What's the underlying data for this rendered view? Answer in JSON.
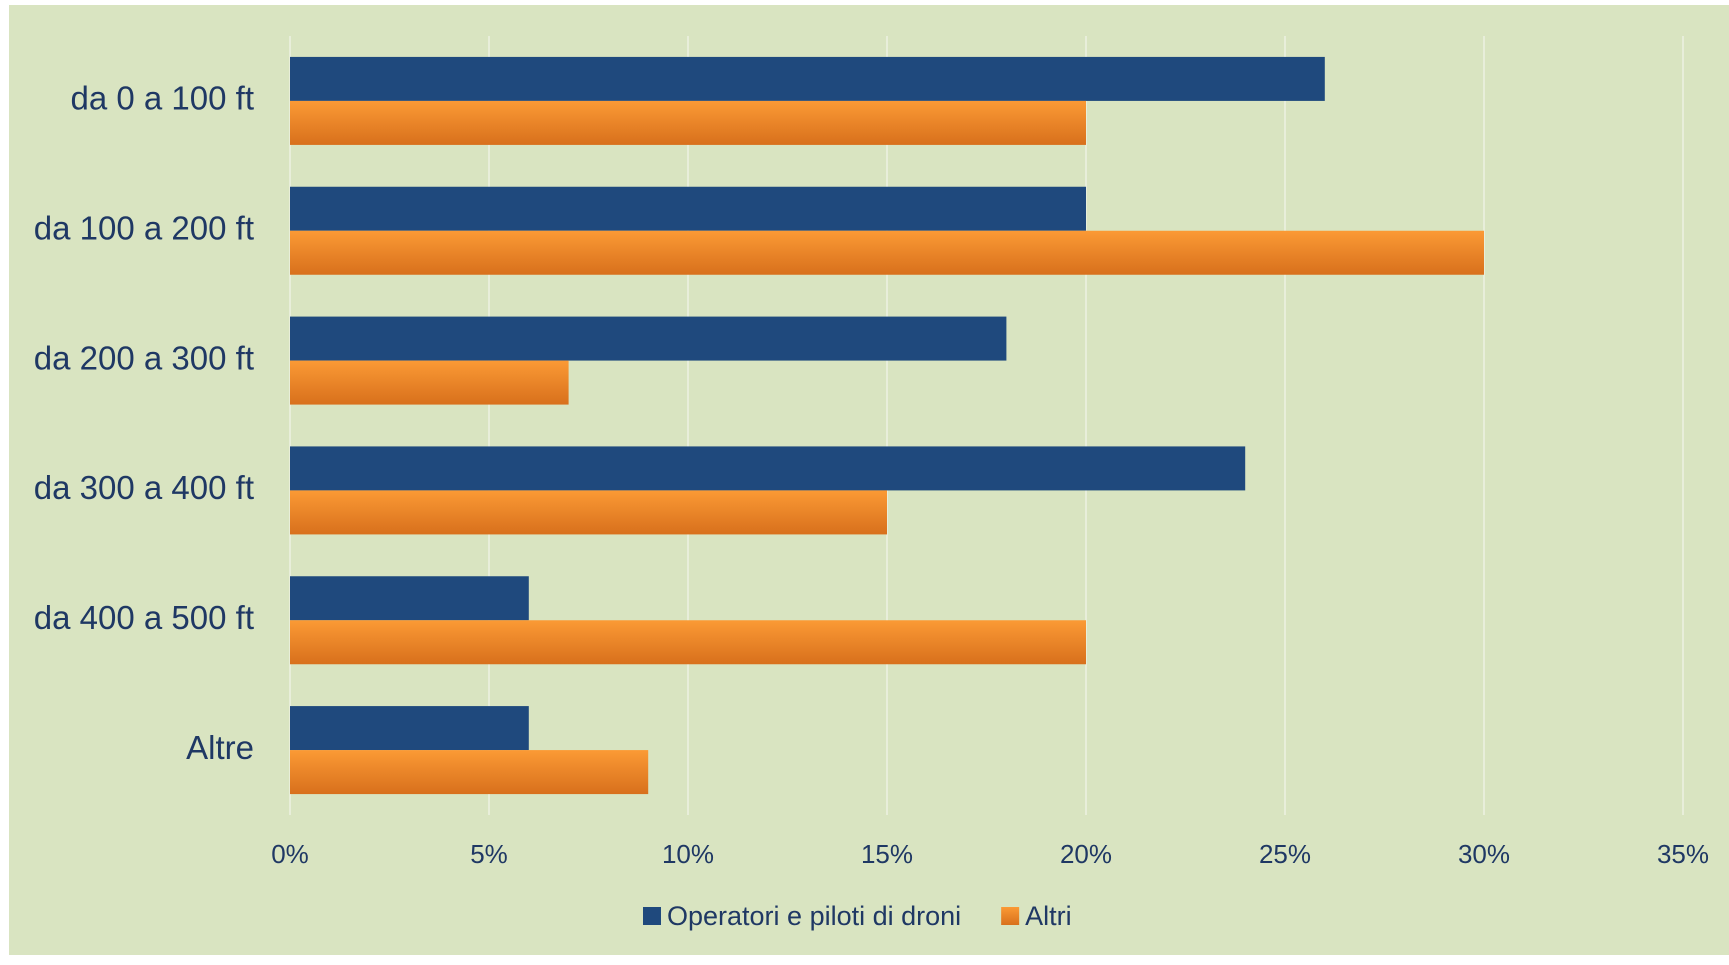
{
  "chart_data": {
    "type": "hbar",
    "categories": [
      "da 0 a 100 ft",
      "da 100 a 200 ft",
      "da 200 a 300 ft",
      "da 300 a 400 ft",
      "da 400 a 500 ft",
      "Altre"
    ],
    "series": [
      {
        "name": "Operatori e piloti di droni",
        "color": "#1f497d",
        "values": [
          26,
          20,
          18,
          24,
          6,
          6
        ]
      },
      {
        "name": "Altri",
        "color": "#f28c28",
        "values": [
          20,
          30,
          7,
          15,
          20,
          9
        ]
      }
    ],
    "xlim": [
      0,
      35
    ],
    "xticks": [
      {
        "value": 0,
        "label": "0%"
      },
      {
        "value": 5,
        "label": "5%"
      },
      {
        "value": 10,
        "label": "10%"
      },
      {
        "value": 15,
        "label": "15%"
      },
      {
        "value": 20,
        "label": "20%"
      },
      {
        "value": 25,
        "label": "25%"
      },
      {
        "value": 30,
        "label": "30%"
      },
      {
        "value": 35,
        "label": "35%"
      }
    ],
    "grid": true,
    "legend": "bottom"
  }
}
